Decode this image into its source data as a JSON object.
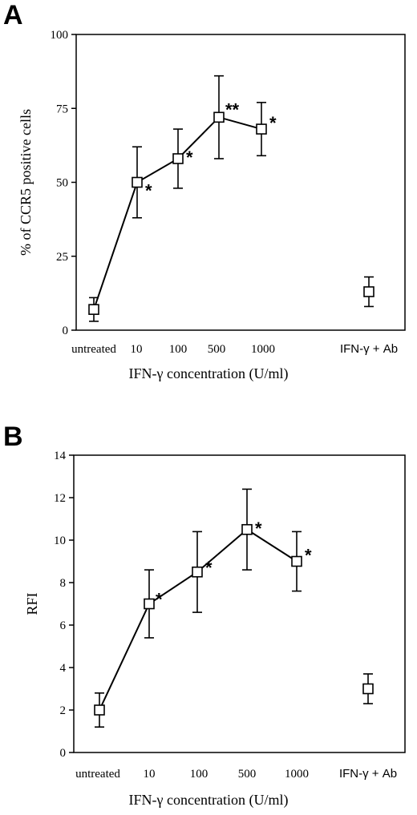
{
  "chart_data": [
    {
      "panel": "A",
      "type": "line",
      "ylabel": "% of CCR5 positive cells",
      "xlabel": "IFN-γ concentration (U/ml)",
      "ylim": [
        0,
        100
      ],
      "yticks": [
        0,
        25,
        50,
        75,
        100
      ],
      "categories": [
        "untreated",
        "10",
        "100",
        "500",
        "1000",
        "IFN-γ + Ab"
      ],
      "grid": false,
      "series": [
        {
          "connected_points": [
            0,
            1,
            2,
            3,
            4
          ],
          "values": [
            7,
            50,
            58,
            72,
            68,
            13
          ],
          "error_plus": [
            4,
            12,
            10,
            14,
            9,
            5
          ],
          "error_minus": [
            4,
            12,
            10,
            14,
            9,
            5
          ],
          "significance": [
            "",
            "*",
            "*",
            "**",
            "*",
            ""
          ]
        }
      ]
    },
    {
      "panel": "B",
      "type": "line",
      "ylabel": "RFI",
      "xlabel": "IFN-γ concentration (U/ml)",
      "ylim": [
        0,
        14
      ],
      "yticks": [
        0,
        2,
        4,
        6,
        8,
        10,
        12,
        14
      ],
      "categories": [
        "untreated",
        "10",
        "100",
        "500",
        "1000",
        "IFN-γ + Ab"
      ],
      "grid": false,
      "series": [
        {
          "connected_points": [
            0,
            1,
            2,
            3,
            4
          ],
          "values": [
            2,
            7,
            8.5,
            10.5,
            9,
            3
          ],
          "error_plus": [
            0.8,
            1.6,
            1.9,
            1.9,
            1.4,
            0.7
          ],
          "error_minus": [
            0.8,
            1.6,
            1.9,
            1.9,
            1.4,
            0.7
          ],
          "significance": [
            "",
            "*",
            "*",
            "*",
            "*",
            ""
          ]
        }
      ]
    }
  ]
}
